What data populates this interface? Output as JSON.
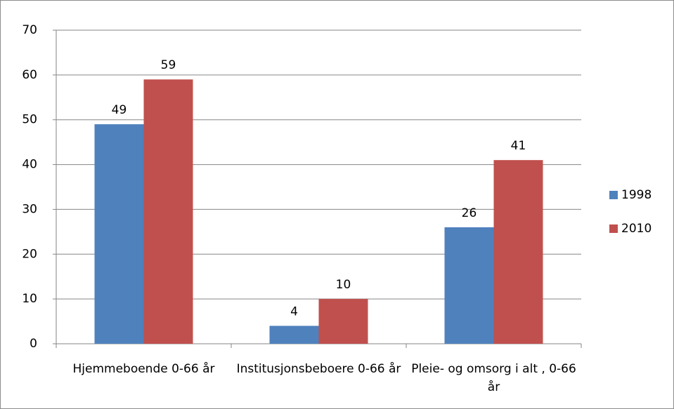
{
  "chart_data": {
    "type": "bar",
    "categories": [
      "Hjemmeboende 0-66 år",
      "Institusjonsbeboere 0-66 år",
      "Pleie- og omsorg i alt , 0-66 år"
    ],
    "series": [
      {
        "name": "1998",
        "color": "#4f81bd",
        "values": [
          49,
          4,
          26
        ]
      },
      {
        "name": "2010",
        "color": "#c0504d",
        "values": [
          59,
          10,
          41
        ]
      }
    ],
    "ylim": [
      0,
      70
    ],
    "yticks": [
      0,
      10,
      20,
      30,
      40,
      50,
      60,
      70
    ],
    "grid": true,
    "legend": "right"
  }
}
